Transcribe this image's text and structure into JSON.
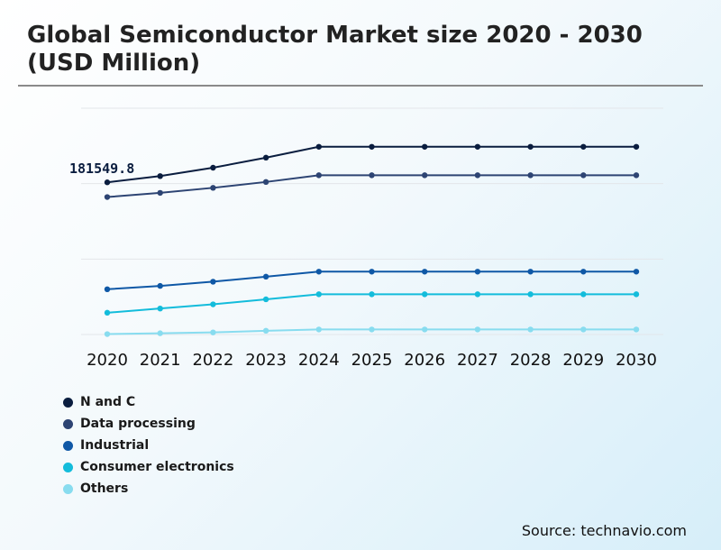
{
  "title": "Global Semiconductor Market size 2020 - 2030 (USD Million)",
  "source": "Source: technavio.com",
  "chart_data": {
    "type": "line",
    "title": "Global Semiconductor Market size 2020 - 2030 (USD Million)",
    "categories": [
      "2020",
      "2021",
      "2022",
      "2023",
      "2024",
      "2025",
      "2026",
      "2027",
      "2028",
      "2029",
      "2030"
    ],
    "annotation": "181549.8",
    "grid": true,
    "legend_position": "bottom-left",
    "series": [
      {
        "name": "N and C",
        "color": "#0a1d3f",
        "values": [
          181549.8,
          189000,
          199000,
          211000,
          224000,
          224000,
          224000,
          224000,
          224000,
          224000,
          224000
        ]
      },
      {
        "name": "Data processing",
        "color": "#2d4473",
        "values": [
          164000,
          169000,
          175000,
          182000,
          190000,
          190000,
          190000,
          190000,
          190000,
          190000,
          190000
        ]
      },
      {
        "name": "Industrial",
        "color": "#0f58a6",
        "values": [
          54000,
          58000,
          63000,
          69000,
          75000,
          75000,
          75000,
          75000,
          75000,
          75000,
          75000
        ]
      },
      {
        "name": "Consumer electronics",
        "color": "#13bcdb",
        "values": [
          26000,
          31000,
          36000,
          42000,
          48000,
          48000,
          48000,
          48000,
          48000,
          48000,
          48000
        ]
      },
      {
        "name": "Others",
        "color": "#88dcef",
        "values": [
          500,
          1500,
          2500,
          4500,
          6000,
          6000,
          6000,
          6000,
          6000,
          6000,
          6000
        ]
      }
    ],
    "ylim": [
      0,
      270000
    ]
  }
}
